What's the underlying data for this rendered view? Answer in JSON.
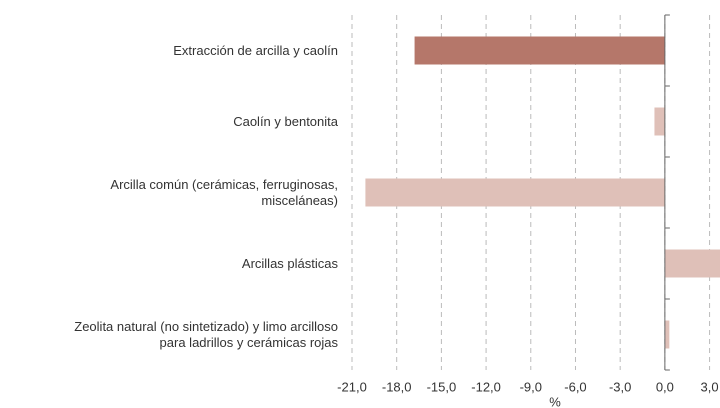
{
  "chart_data": {
    "type": "bar",
    "orientation": "horizontal",
    "categories": [
      "Extracción de arcilla y caolín",
      "Caolín y bentonita",
      "Arcilla común (cerámicas, ferruginosas,\nmisceláneas)",
      "Arcillas plásticas",
      "Zeolita natural (no sintetizado) y limo arcilloso\npara ladrillos y cerámicas rojas"
    ],
    "values": [
      -16.8,
      -0.7,
      -20.1,
      3.7,
      0.3
    ],
    "colors": [
      "#b5776a",
      "#dfc0b8",
      "#dfc0b8",
      "#dfc0b8",
      "#dfc0b8"
    ],
    "xlabel": "%",
    "xlim": [
      -21,
      3.7
    ],
    "xticks": [
      {
        "value": -21,
        "label": "-21,0"
      },
      {
        "value": -18,
        "label": "-18,0"
      },
      {
        "value": -15,
        "label": "-15,0"
      },
      {
        "value": -12,
        "label": "-12,0"
      },
      {
        "value": -9,
        "label": "-9,0"
      },
      {
        "value": -6,
        "label": "-6,0"
      },
      {
        "value": -3,
        "label": "-3,0"
      },
      {
        "value": 0,
        "label": "0,0"
      },
      {
        "value": 3,
        "label": "3,0"
      }
    ],
    "grid": true
  }
}
